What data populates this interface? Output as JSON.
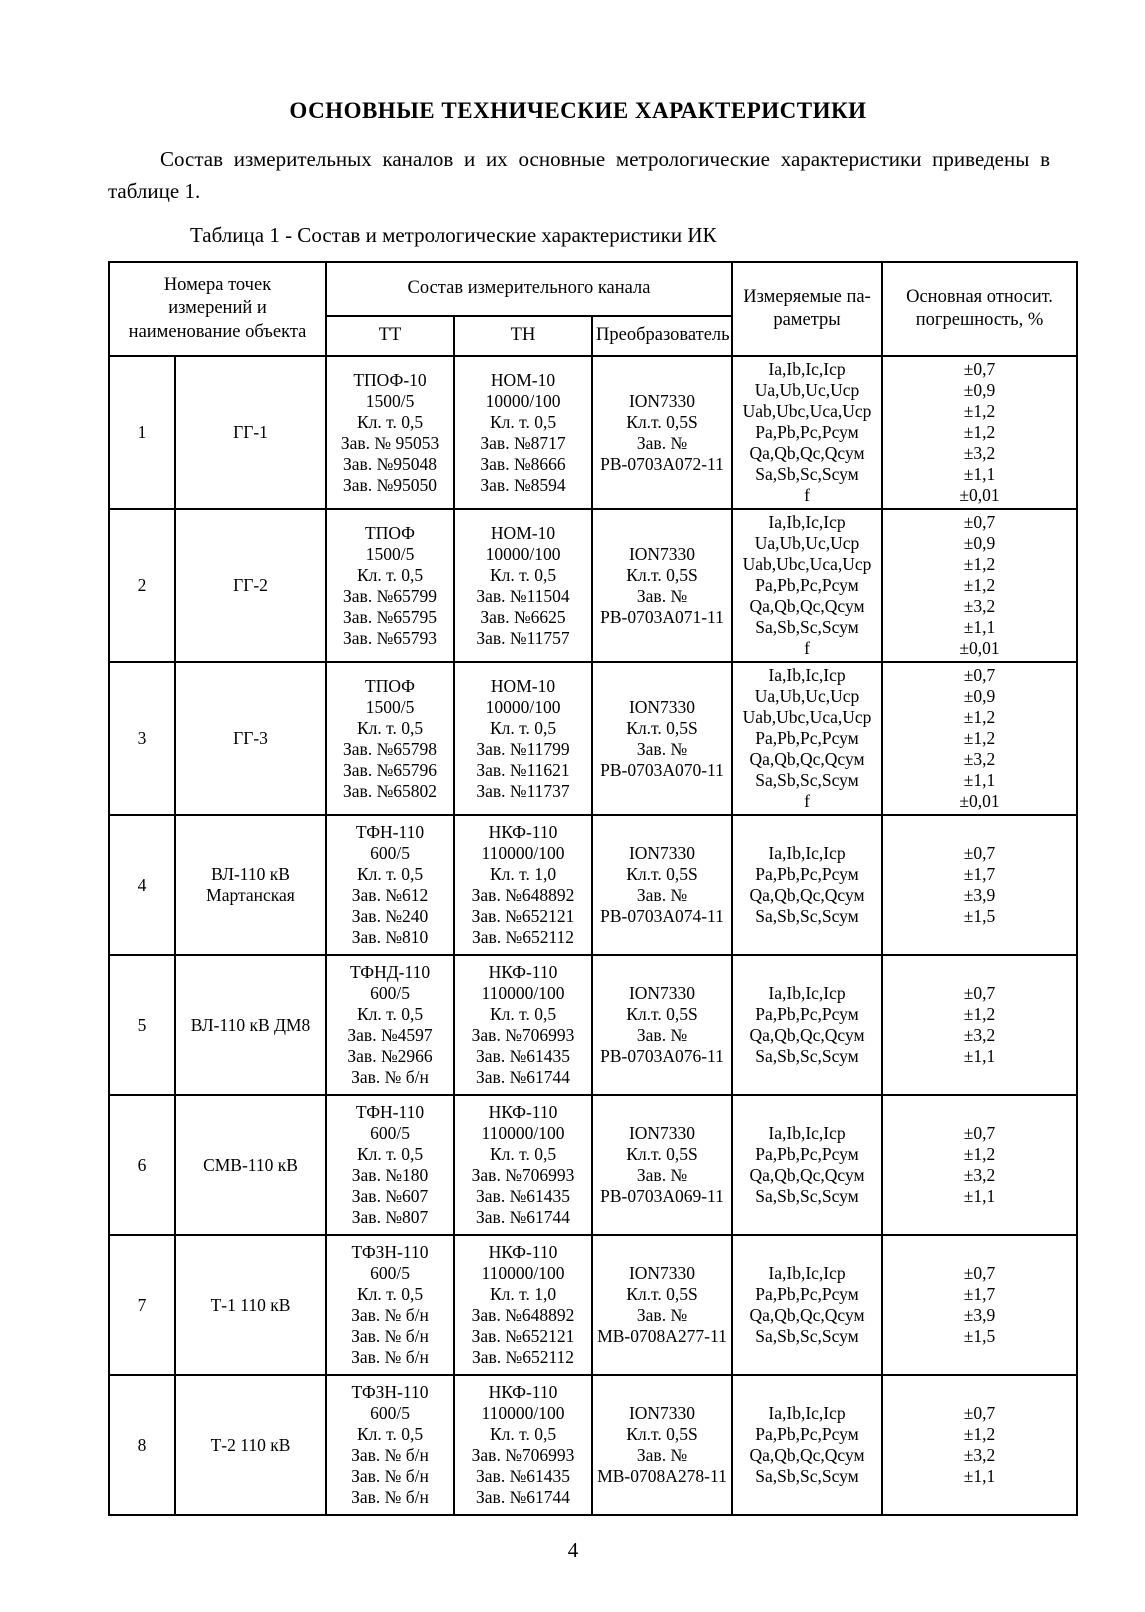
{
  "document": {
    "title": "ОСНОВНЫЕ ТЕХНИЧЕСКИЕ ХАРАКТЕРИСТИКИ",
    "intro_paragraph": "Состав измерительных каналов и их основные метрологические характеристики приведены в таблице 1.",
    "table_caption": "Таблица 1 - Состав и метрологические характеристики ИК",
    "page_number": "4"
  },
  "table": {
    "header": {
      "points_col": "Номера точек\nизмерений и\nнаименование объекта",
      "channel_group": "Состав измерительного канала",
      "tt": "ТТ",
      "tn": "ТН",
      "converter": "Преобразователь",
      "params": "Измеряемые па-\nраметры",
      "error": "Основная относит.\nпогрешность, %"
    },
    "rows": [
      {
        "num": "1",
        "object": "ГГ-1",
        "tt": "ТПОФ-10\n1500/5\nКл. т. 0,5\nЗав. № 95053\nЗав. №95048\nЗав. №95050",
        "tn": "НОМ-10\n10000/100\nКл. т. 0,5\nЗав. №8717\nЗав. №8666\nЗав. №8594",
        "converter": "ION7330\nКл.т. 0,5S\nЗав. №\nРВ-0703А072-11",
        "params": "Ia,Ib,Ic,Iср\nUa,Ub,Uc,Uср\nUab,Ubc,Uca,Uср\nPa,Pb,Pc,Pсум\nQa,Qb,Qc,Qсум\nSa,Sb,Sc,Sсум\nf",
        "error": "±0,7\n±0,9\n±1,2\n±1,2\n±3,2\n±1,1\n±0,01"
      },
      {
        "num": "2",
        "object": "ГГ-2",
        "tt": "ТПОФ\n1500/5\nКл. т. 0,5\nЗав. №65799\nЗав. №65795\nЗав. №65793",
        "tn": "НОМ-10\n10000/100\nКл. т. 0,5\nЗав. №11504\nЗав. №6625\nЗав. №11757",
        "converter": "ION7330\nКл.т. 0,5S\nЗав. №\nРВ-0703А071-11",
        "params": "Ia,Ib,Ic,Iср\nUa,Ub,Uc,Uср\nUab,Ubc,Uca,Uср\nPa,Pb,Pc,Pсум\nQa,Qb,Qc,Qсум\nSa,Sb,Sc,Sсум\nf",
        "error": "±0,7\n±0,9\n±1,2\n±1,2\n±3,2\n±1,1\n±0,01"
      },
      {
        "num": "3",
        "object": "ГГ-3",
        "tt": "ТПОФ\n1500/5\nКл. т. 0,5\nЗав. №65798\nЗав. №65796\nЗав. №65802",
        "tn": "НОМ-10\n10000/100\nКл. т. 0,5\nЗав. №11799\nЗав. №11621\nЗав. №11737",
        "converter": "ION7330\nКл.т. 0,5S\nЗав. №\nРВ-0703А070-11",
        "params": "Ia,Ib,Ic,Iср\nUa,Ub,Uc,Uср\nUab,Ubc,Uca,Uср\nPa,Pb,Pc,Pсум\nQa,Qb,Qc,Qсум\nSa,Sb,Sc,Sсум\nf",
        "error": "±0,7\n±0,9\n±1,2\n±1,2\n±3,2\n±1,1\n±0,01"
      },
      {
        "num": "4",
        "object": "ВЛ-110 кВ\nМартанская",
        "tt": "ТФН-110\n600/5\nКл. т. 0,5\nЗав. №612\nЗав. №240\nЗав. №810",
        "tn": "НКФ-110\n110000/100\nКл. т. 1,0\nЗав. №648892\nЗав. №652121\nЗав. №652112",
        "converter": "ION7330\nКл.т. 0,5S\nЗав. №\nРВ-0703А074-11",
        "params": "Ia,Ib,Ic,Iср\nPa,Pb,Pc,Pсум\nQa,Qb,Qc,Qсум\nSa,Sb,Sc,Sсум",
        "error": "±0,7\n±1,7\n±3,9\n±1,5"
      },
      {
        "num": "5",
        "object": "ВЛ-110 кВ ДМ8",
        "tt": "ТФНД-110\n600/5\nКл. т. 0,5\nЗав. №4597\nЗав. №2966\nЗав. № б/н",
        "tn": "НКФ-110\n110000/100\nКл. т. 0,5\nЗав. №706993\nЗав. №61435\nЗав. №61744",
        "converter": "ION7330\nКл.т. 0,5S\nЗав. №\nРВ-0703А076-11",
        "params": "Ia,Ib,Ic,Iср\nPa,Pb,Pc,Pсум\nQa,Qb,Qc,Qсум\nSa,Sb,Sc,Sсум",
        "error": "±0,7\n±1,2\n±3,2\n±1,1"
      },
      {
        "num": "6",
        "object": "СМВ-110 кВ",
        "tt": "ТФН-110\n600/5\nКл. т. 0,5\nЗав. №180\nЗав. №607\nЗав. №807",
        "tn": "НКФ-110\n110000/100\nКл. т. 0,5\nЗав. №706993\nЗав. №61435\nЗав. №61744",
        "converter": "ION7330\nКл.т. 0,5S\nЗав. №\nРВ-0703А069-11",
        "params": "Ia,Ib,Ic,Iср\nPa,Pb,Pc,Pсум\nQa,Qb,Qc,Qсум\nSa,Sb,Sc,Sсум",
        "error": "±0,7\n±1,2\n±3,2\n±1,1"
      },
      {
        "num": "7",
        "object": "Т-1 110 кВ",
        "tt": "ТФЗН-110\n600/5\nКл. т. 0,5\nЗав. № б/н\nЗав. № б/н\nЗав. № б/н",
        "tn": "НКФ-110\n110000/100\nКл. т. 1,0\nЗав. №648892\nЗав. №652121\nЗав. №652112",
        "converter": "ION7330\nКл.т. 0,5S\nЗав. №\nМВ-0708А277-11",
        "params": "Ia,Ib,Ic,Iср\nPa,Pb,Pc,Pсум\nQa,Qb,Qc,Qсум\nSa,Sb,Sc,Sсум",
        "error": "±0,7\n±1,7\n±3,9\n±1,5"
      },
      {
        "num": "8",
        "object": "Т-2 110 кВ",
        "tt": "ТФЗН-110\n600/5\nКл. т. 0,5\nЗав. № б/н\nЗав. № б/н\nЗав. № б/н",
        "tn": "НКФ-110\n110000/100\nКл. т. 0,5\nЗав. №706993\nЗав. №61435\nЗав. №61744",
        "converter": "ION7330\nКл.т. 0,5S\nЗав. №\nМВ-0708А278-11",
        "params": "Ia,Ib,Ic,Iср\nPa,Pb,Pc,Pсум\nQa,Qb,Qc,Qсум\nSa,Sb,Sc,Sсум",
        "error": "±0,7\n±1,2\n±3,2\n±1,1"
      }
    ]
  }
}
